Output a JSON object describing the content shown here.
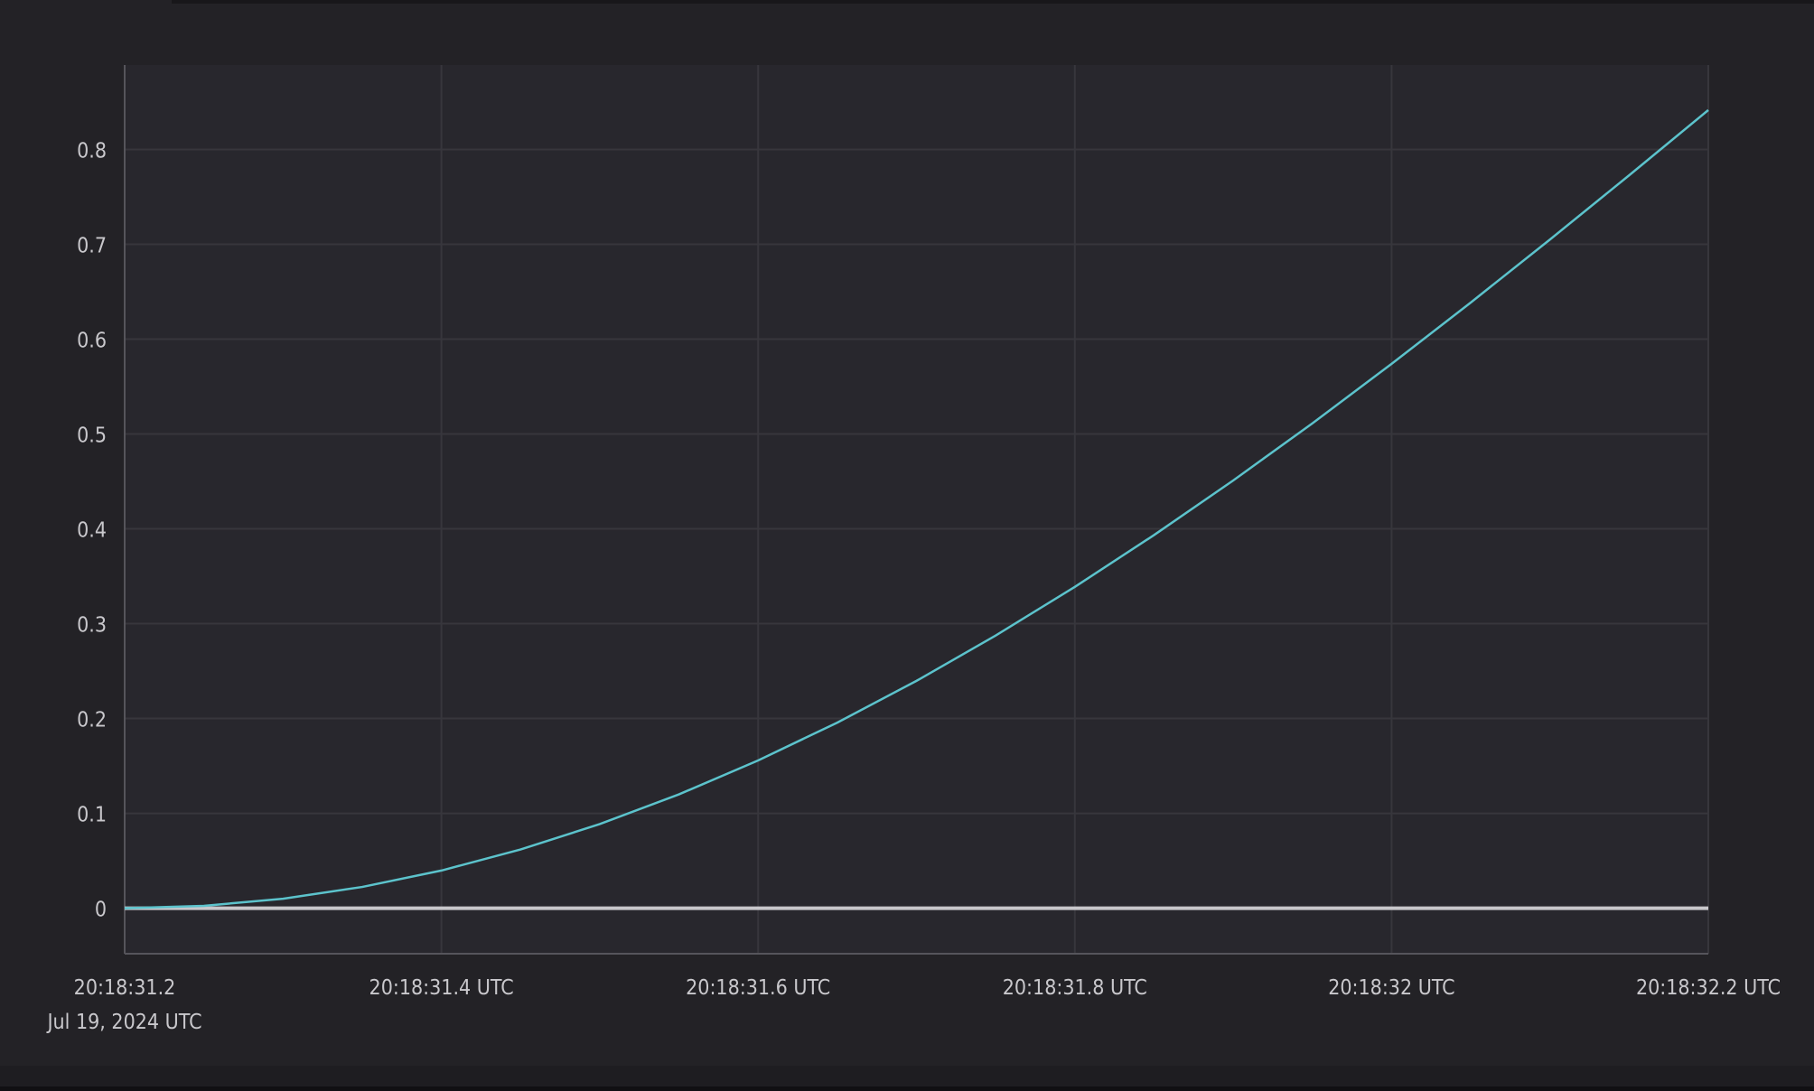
{
  "chart_data": {
    "type": "line",
    "title": "",
    "xlabel": "",
    "ylabel": "",
    "x": [
      "20:18:31.20",
      "20:18:31.25",
      "20:18:31.30",
      "20:18:31.35",
      "20:18:31.40",
      "20:18:31.45",
      "20:18:31.50",
      "20:18:31.55",
      "20:18:31.60",
      "20:18:31.65",
      "20:18:31.70",
      "20:18:31.75",
      "20:18:31.80",
      "20:18:31.85",
      "20:18:31.90",
      "20:18:31.95",
      "20:18:32.00",
      "20:18:32.05",
      "20:18:32.10",
      "20:18:32.15",
      "20:18:32.20"
    ],
    "x_seconds": [
      31.2,
      31.25,
      31.3,
      31.35,
      31.4,
      31.45,
      31.5,
      31.55,
      31.6,
      31.65,
      31.7,
      31.75,
      31.8,
      31.85,
      31.9,
      31.95,
      32.0,
      32.05,
      32.1,
      32.15,
      32.2
    ],
    "series": [
      {
        "color": "#5cc3cc",
        "values": [
          0,
          0.0025,
          0.01,
          0.0224,
          0.0397,
          0.0619,
          0.0887,
          0.12,
          0.1558,
          0.1957,
          0.2397,
          0.2875,
          0.3388,
          0.3934,
          0.451,
          0.5112,
          0.5739,
          0.6386,
          0.705,
          0.7727,
          0.8415
        ]
      },
      {
        "color": "#c8c7cb",
        "values": [
          0,
          0,
          0,
          0,
          0,
          0,
          0,
          0,
          0,
          0,
          0,
          0,
          0,
          0,
          0,
          0,
          0,
          0,
          0,
          0,
          0
        ]
      }
    ],
    "xlim_seconds": [
      31.2,
      32.2
    ],
    "ylim": [
      -0.048,
      0.889
    ],
    "yticks": [
      "0",
      "0.1",
      "0.2",
      "0.3",
      "0.4",
      "0.5",
      "0.6",
      "0.7",
      "0.8"
    ],
    "yticks_values": [
      0,
      0.1,
      0.2,
      0.3,
      0.4,
      0.5,
      0.6,
      0.7,
      0.8
    ],
    "xticks": [
      "20:18:31.2",
      "20:18:31.4 UTC",
      "20:18:31.6 UTC",
      "20:18:31.8 UTC",
      "20:18:32 UTC",
      "20:18:32.2 UTC"
    ],
    "xticks_values": [
      31.2,
      31.4,
      31.6,
      31.8,
      32.0,
      32.2
    ],
    "x_date_label": "Jul 19, 2024 UTC",
    "grid": true,
    "legend": "none"
  }
}
